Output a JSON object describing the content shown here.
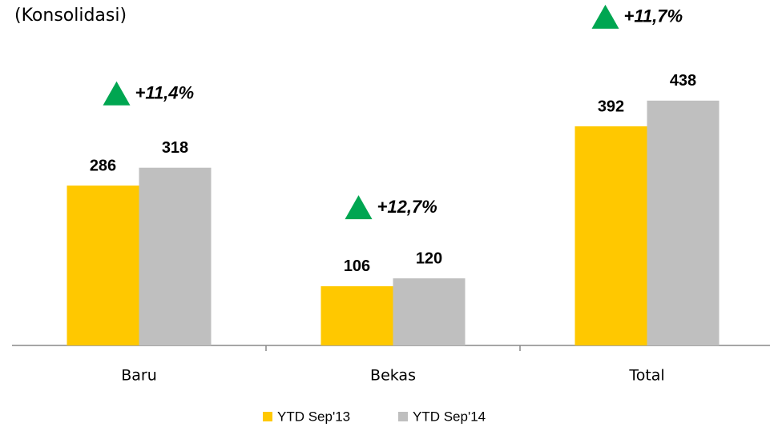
{
  "chart_data": {
    "type": "bar",
    "title": "(Konsolidasi)",
    "categories": [
      "Baru",
      "Bekas",
      "Total"
    ],
    "series": [
      {
        "name": "YTD Sep'13",
        "color": "#FFC800",
        "values": [
          286,
          106,
          392
        ]
      },
      {
        "name": "YTD Sep'14",
        "color": "#BFBFBF",
        "values": [
          318,
          120,
          438
        ]
      }
    ],
    "annotations": [
      "+11,4%",
      "+12,7%",
      "+11,7%"
    ],
    "annotation_color": "#00A651",
    "legend": "bottom"
  }
}
